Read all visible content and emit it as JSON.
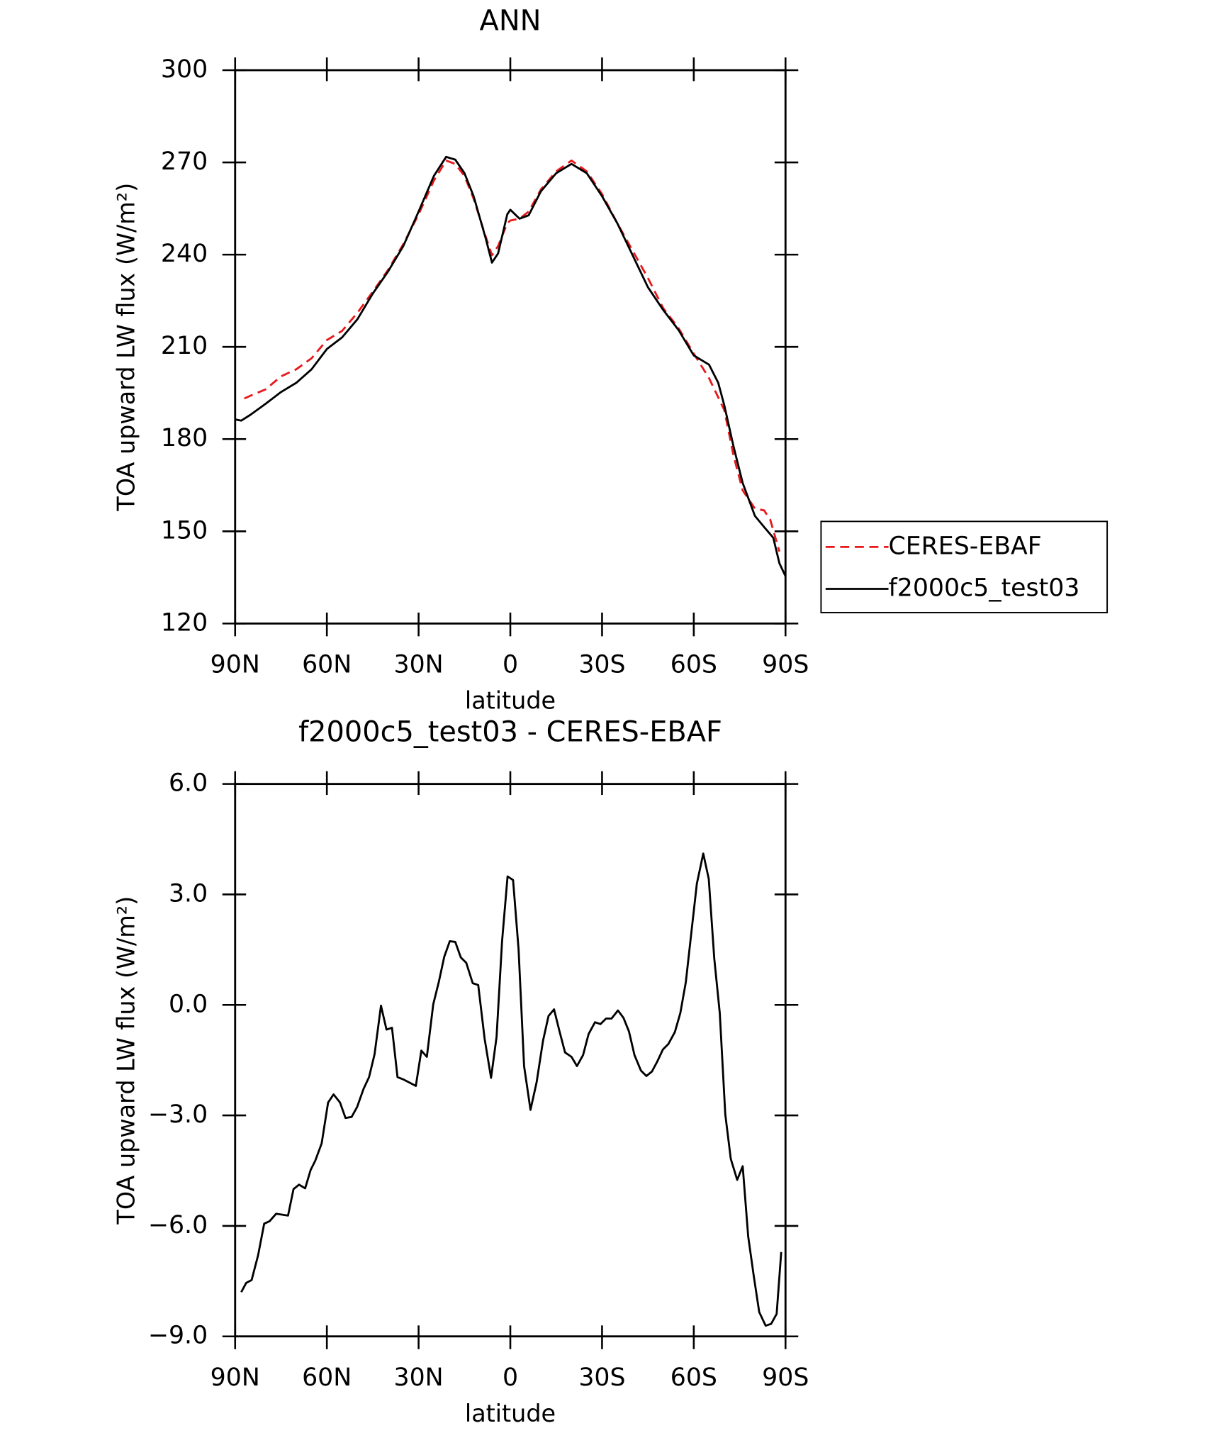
{
  "chart_data": [
    {
      "type": "line",
      "title": "ANN",
      "xlabel": "latitude",
      "ylabel": "TOA upward LW flux (W/m²)",
      "xlim": [
        90,
        -90
      ],
      "xticks": [
        {
          "value": 90,
          "label": "90N"
        },
        {
          "value": 60,
          "label": "60N"
        },
        {
          "value": 30,
          "label": "30N"
        },
        0,
        {
          "value": -30,
          "label": "30S"
        },
        {
          "value": -60,
          "label": "60S"
        },
        {
          "value": -90,
          "label": "90S"
        }
      ],
      "ylim": [
        120,
        300
      ],
      "yticks": [
        120,
        150,
        180,
        210,
        240,
        270,
        300
      ],
      "legend": "right",
      "series": [
        {
          "name": "CERES-EBAF",
          "color": "#e8191c",
          "line_style": "dashed",
          "x": [
            87,
            85,
            80,
            75,
            70,
            65,
            60,
            55,
            50,
            45,
            40,
            35,
            30,
            25,
            21,
            18,
            15,
            12,
            8,
            6,
            4,
            1,
            0,
            -3,
            -6,
            -10,
            -15,
            -20,
            -25,
            -30,
            -35,
            -40,
            -45,
            -50,
            -55,
            -60,
            -65,
            -70,
            -73,
            -76,
            -80,
            -83,
            -85,
            -88
          ],
          "values": [
            193.2,
            194.1,
            196.2,
            200.4,
            202.7,
            206.3,
            212.2,
            215.2,
            221.1,
            227.9,
            235,
            243.4,
            253.1,
            264.1,
            270.6,
            269.5,
            265.6,
            258.2,
            245.7,
            239.8,
            242.8,
            250.2,
            251.1,
            251.7,
            254,
            261.2,
            267.1,
            270.6,
            267.1,
            259.7,
            250.2,
            241.3,
            232.4,
            222.6,
            216.1,
            207.8,
            199.8,
            189.4,
            174.6,
            163.3,
            157.4,
            156.8,
            153.8,
            143.4
          ]
        },
        {
          "name": "f2000c5_test03",
          "color": "#000000",
          "line_style": "solid",
          "x": [
            90,
            88,
            85,
            80,
            75,
            70,
            65,
            60,
            55,
            50,
            45,
            40,
            35,
            30,
            25,
            21,
            18,
            15,
            12,
            8,
            6,
            4,
            1,
            0,
            -3,
            -6,
            -10,
            -15,
            -20,
            -25,
            -30,
            -35,
            -40,
            -45,
            -50,
            -55,
            -60,
            -65,
            -68,
            -70,
            -73,
            -76,
            -80,
            -83,
            -86,
            -88,
            -90
          ],
          "values": [
            186.4,
            186,
            187.9,
            191.5,
            195.3,
            198.3,
            202.7,
            209.3,
            213.1,
            219,
            227.3,
            234.5,
            242.8,
            254,
            265.6,
            271.8,
            270.9,
            266.5,
            259,
            245.1,
            237.4,
            240.4,
            253.1,
            254.6,
            251.7,
            252.8,
            260.6,
            266.5,
            269.5,
            266.5,
            259,
            250.2,
            239.8,
            229.4,
            222,
            215.5,
            207.2,
            204.2,
            198.3,
            190.9,
            177.6,
            165.7,
            155,
            151.4,
            147.9,
            139.6,
            135.4
          ]
        }
      ]
    },
    {
      "type": "line",
      "title": "f2000c5_test03 - CERES-EBAF",
      "xlabel": "latitude",
      "ylabel": "TOA upward LW flux (W/m²)",
      "xlim": [
        90,
        -90
      ],
      "xticks": [
        {
          "value": 90,
          "label": "90N"
        },
        {
          "value": 60,
          "label": "60N"
        },
        {
          "value": 30,
          "label": "30N"
        },
        0,
        {
          "value": -30,
          "label": "30S"
        },
        {
          "value": -60,
          "label": "60S"
        },
        {
          "value": -90,
          "label": "90S"
        }
      ],
      "ylim": [
        -9,
        6
      ],
      "yticks": [
        {
          "value": -9,
          "label": "−9.0"
        },
        {
          "value": -6,
          "label": "−6.0"
        },
        {
          "value": -3,
          "label": "−3.0"
        },
        {
          "value": 0,
          "label": "0.0"
        },
        {
          "value": 3,
          "label": "3.0"
        },
        {
          "value": 6,
          "label": "6.0"
        }
      ],
      "series": [
        {
          "color": "#000000",
          "line_style": "solid",
          "x": [
            88,
            86.4,
            84.6,
            82.5,
            80.5,
            78.7,
            76.6,
            72.7,
            70.9,
            69.1,
            67.1,
            65.3,
            63.8,
            61.7,
            59.6,
            57.8,
            55.7,
            53.9,
            51.9,
            50.1,
            48,
            46.2,
            44.4,
            42.3,
            40.5,
            38.7,
            36.9,
            34.8,
            30.9,
            29.1,
            27.3,
            25.2,
            23.4,
            21.6,
            19.8,
            18,
            16.2,
            14.4,
            12.3,
            10.5,
            8.4,
            6.3,
            4.5,
            2.7,
            0.9,
            -0.9,
            -2.7,
            -4.5,
            -6.6,
            -8.6,
            -10.7,
            -12.5,
            -14.3,
            -16.1,
            -17.9,
            -20,
            -21.8,
            -23.8,
            -25.6,
            -27.7,
            -29.5,
            -31.3,
            -33.1,
            -35.2,
            -37,
            -38.8,
            -40.6,
            -42.7,
            -44.5,
            -46.3,
            -48.1,
            -49.9,
            -51.7,
            -53.8,
            -55.6,
            -57.4,
            -59.2,
            -61,
            -63.1,
            -64.9,
            -66.7,
            -68.5,
            -70.3,
            -72.1,
            -74.2,
            -76,
            -77.8,
            -79.6,
            -81.4,
            -83.5,
            -85.3,
            -87.1,
            -88.6
          ],
          "values": [
            -7.8,
            -7.55,
            -7.47,
            -6.8,
            -5.94,
            -5.87,
            -5.67,
            -5.72,
            -5,
            -4.88,
            -4.98,
            -4.48,
            -4.23,
            -3.76,
            -2.65,
            -2.43,
            -2.65,
            -3.07,
            -3.04,
            -2.77,
            -2.28,
            -1.96,
            -1.34,
            -0.02,
            -0.67,
            -0.62,
            -1.96,
            -2.03,
            -2.2,
            -1.24,
            -1.41,
            0.02,
            0.62,
            1.31,
            1.73,
            1.71,
            1.29,
            1.14,
            0.59,
            0.54,
            -0.92,
            -1.98,
            -0.87,
            1.73,
            3.49,
            3.39,
            1.51,
            -1.66,
            -2.85,
            -2.1,
            -0.97,
            -0.3,
            -0.12,
            -0.72,
            -1.29,
            -1.41,
            -1.66,
            -1.36,
            -0.79,
            -0.47,
            -0.52,
            -0.37,
            -0.37,
            -0.15,
            -0.35,
            -0.72,
            -1.36,
            -1.78,
            -1.93,
            -1.81,
            -1.53,
            -1.21,
            -1.06,
            -0.74,
            -0.22,
            0.62,
            1.96,
            3.29,
            4.11,
            3.42,
            1.26,
            -0.22,
            -2.97,
            -4.18,
            -4.75,
            -4.38,
            -6.29,
            -7.35,
            -8.34,
            -8.71,
            -8.66,
            -8.39,
            -6.71
          ]
        }
      ]
    }
  ]
}
